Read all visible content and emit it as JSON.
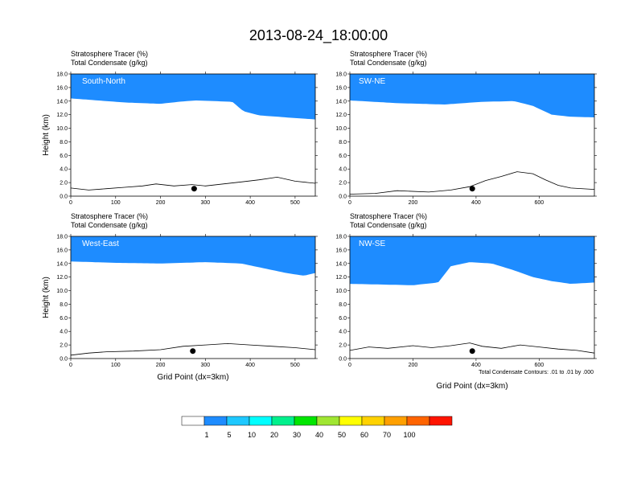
{
  "title": "2013-08-24_18:00:00",
  "colorbar": {
    "colors": [
      "#ffffff",
      "#1e8cff",
      "#1ec8ff",
      "#00ffff",
      "#00f08c",
      "#00e600",
      "#a0e632",
      "#ffff00",
      "#ffd200",
      "#ffa000",
      "#ff6400",
      "#ff1400"
    ],
    "labels": [
      "1",
      "5",
      "10",
      "20",
      "30",
      "40",
      "50",
      "60",
      "70",
      "100"
    ]
  },
  "contour_note": "Total Condensate Contours: .01 to .01 by .000",
  "chart_data": [
    {
      "type": "heatmap",
      "panel_label": "South-North",
      "line1": "Stratosphere Tracer   (%)",
      "line2": "Total Condensate   (g/kg)",
      "ylabel": "Height (km)",
      "xlabel": "",
      "xlim": [
        0,
        545
      ],
      "ylim": [
        0,
        18
      ],
      "xticks": [
        "0",
        "100",
        "200",
        "300",
        "400",
        "500"
      ],
      "yticks": [
        "0.0",
        "2.0",
        "4.0",
        "6.0",
        "8.0",
        "10.0",
        "12.0",
        "14.0",
        "16.0",
        "18.0"
      ],
      "tropopause": [
        [
          0,
          14.4
        ],
        [
          60,
          14.1
        ],
        [
          120,
          13.8
        ],
        [
          200,
          13.6
        ],
        [
          240,
          13.9
        ],
        [
          280,
          14.1
        ],
        [
          360,
          13.9
        ],
        [
          385,
          12.5
        ],
        [
          420,
          11.9
        ],
        [
          480,
          11.6
        ],
        [
          545,
          11.3
        ]
      ],
      "terrain": [
        [
          0,
          1.2
        ],
        [
          40,
          0.9
        ],
        [
          80,
          1.1
        ],
        [
          120,
          1.3
        ],
        [
          160,
          1.5
        ],
        [
          190,
          1.8
        ],
        [
          230,
          1.5
        ],
        [
          270,
          1.7
        ],
        [
          300,
          1.5
        ],
        [
          340,
          1.8
        ],
        [
          380,
          2.1
        ],
        [
          420,
          2.4
        ],
        [
          460,
          2.8
        ],
        [
          500,
          2.2
        ],
        [
          545,
          1.9
        ]
      ],
      "marker": [
        275,
        1.1
      ]
    },
    {
      "type": "heatmap",
      "panel_label": "SW-NE",
      "line1": "Stratosphere Tracer   (%)",
      "line2": "Total Condensate   (g/kg)",
      "ylabel": "",
      "xlabel": "",
      "xlim": [
        0,
        775
      ],
      "ylim": [
        0,
        18
      ],
      "xticks": [
        "0",
        "200",
        "400",
        "600"
      ],
      "yticks": [
        "0.0",
        "2.0",
        "4.0",
        "6.0",
        "8.0",
        "10.0",
        "12.0",
        "14.0",
        "16.0",
        "18.0"
      ],
      "tropopause": [
        [
          0,
          14.1
        ],
        [
          150,
          13.7
        ],
        [
          300,
          13.5
        ],
        [
          420,
          13.9
        ],
        [
          520,
          14.0
        ],
        [
          580,
          13.3
        ],
        [
          640,
          12.0
        ],
        [
          700,
          11.7
        ],
        [
          775,
          11.6
        ]
      ],
      "terrain": [
        [
          0,
          0.3
        ],
        [
          80,
          0.4
        ],
        [
          150,
          0.8
        ],
        [
          250,
          0.6
        ],
        [
          320,
          0.9
        ],
        [
          380,
          1.4
        ],
        [
          430,
          2.3
        ],
        [
          480,
          2.9
        ],
        [
          530,
          3.6
        ],
        [
          580,
          3.3
        ],
        [
          620,
          2.4
        ],
        [
          660,
          1.6
        ],
        [
          700,
          1.2
        ],
        [
          775,
          1.0
        ]
      ],
      "marker": [
        388,
        1.1
      ]
    },
    {
      "type": "heatmap",
      "panel_label": "West-East",
      "line1": "Stratosphere Tracer   (%)",
      "line2": "Total Condensate   (g/kg)",
      "ylabel": "Height (km)",
      "xlabel": "Grid Point (dx=3km)",
      "xlim": [
        0,
        545
      ],
      "ylim": [
        0,
        18
      ],
      "xticks": [
        "0",
        "100",
        "200",
        "300",
        "400",
        "500"
      ],
      "yticks": [
        "0.0",
        "2.0",
        "4.0",
        "6.0",
        "8.0",
        "10.0",
        "12.0",
        "14.0",
        "16.0",
        "18.0"
      ],
      "tropopause": [
        [
          0,
          14.3
        ],
        [
          100,
          14.1
        ],
        [
          200,
          14.0
        ],
        [
          300,
          14.2
        ],
        [
          380,
          14.0
        ],
        [
          430,
          13.3
        ],
        [
          480,
          12.6
        ],
        [
          520,
          12.2
        ],
        [
          545,
          12.6
        ]
      ],
      "terrain": [
        [
          0,
          0.5
        ],
        [
          40,
          0.8
        ],
        [
          80,
          1.0
        ],
        [
          140,
          1.1
        ],
        [
          200,
          1.3
        ],
        [
          250,
          1.8
        ],
        [
          300,
          2.0
        ],
        [
          350,
          2.2
        ],
        [
          400,
          2.0
        ],
        [
          450,
          1.8
        ],
        [
          500,
          1.6
        ],
        [
          545,
          1.3
        ]
      ],
      "marker": [
        272,
        1.1
      ]
    },
    {
      "type": "heatmap",
      "panel_label": "NW-SE",
      "line1": "Stratosphere Tracer   (%)",
      "line2": "Total Condensate   (g/kg)",
      "ylabel": "",
      "xlabel": "Grid Point (dx=3km)",
      "xlim": [
        0,
        775
      ],
      "ylim": [
        0,
        18
      ],
      "xticks": [
        "0",
        "200",
        "400",
        "600"
      ],
      "yticks": [
        "0.0",
        "2.0",
        "4.0",
        "6.0",
        "8.0",
        "10.0",
        "12.0",
        "14.0",
        "16.0",
        "18.0"
      ],
      "tropopause": [
        [
          0,
          11.0
        ],
        [
          100,
          10.9
        ],
        [
          200,
          10.8
        ],
        [
          280,
          11.2
        ],
        [
          320,
          13.6
        ],
        [
          380,
          14.2
        ],
        [
          450,
          14.0
        ],
        [
          520,
          13.0
        ],
        [
          580,
          12.0
        ],
        [
          640,
          11.4
        ],
        [
          700,
          11.0
        ],
        [
          775,
          11.2
        ]
      ],
      "terrain": [
        [
          0,
          1.2
        ],
        [
          60,
          1.7
        ],
        [
          120,
          1.5
        ],
        [
          200,
          1.9
        ],
        [
          260,
          1.6
        ],
        [
          320,
          1.9
        ],
        [
          380,
          2.3
        ],
        [
          420,
          1.8
        ],
        [
          480,
          1.5
        ],
        [
          540,
          2.0
        ],
        [
          600,
          1.7
        ],
        [
          660,
          1.4
        ],
        [
          720,
          1.2
        ],
        [
          775,
          0.8
        ]
      ],
      "marker": [
        388,
        1.1
      ]
    }
  ]
}
